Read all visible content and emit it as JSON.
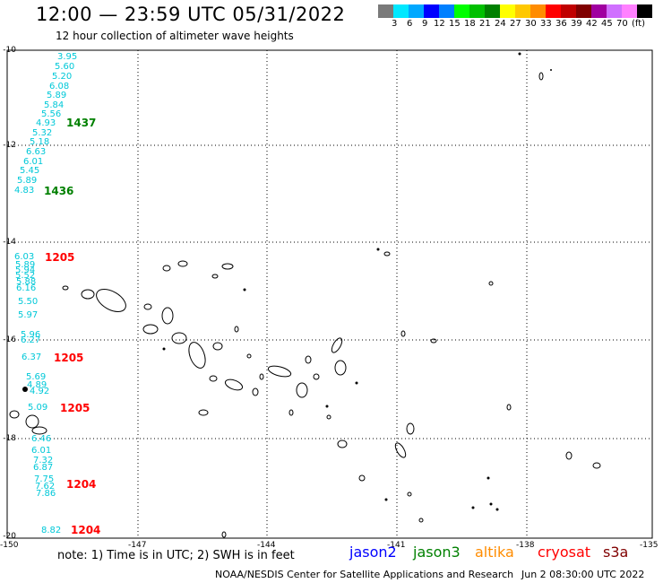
{
  "header": {
    "title": "12:00 — 23:59 UTC 05/31/2022",
    "subtitle": "12 hour collection of altimeter wave heights"
  },
  "legend": {
    "swatches": [
      {
        "color": "#7a7a7a",
        "label": ""
      },
      {
        "color": "#00e8ff",
        "label": "3"
      },
      {
        "color": "#00a8ff",
        "label": "6"
      },
      {
        "color": "#0000ff",
        "label": "9"
      },
      {
        "color": "#0080ff",
        "label": "12"
      },
      {
        "color": "#00ff00",
        "label": "15"
      },
      {
        "color": "#00c000",
        "label": "18"
      },
      {
        "color": "#008000",
        "label": "21"
      },
      {
        "color": "#ffff00",
        "label": "24"
      },
      {
        "color": "#ffc800",
        "label": "27"
      },
      {
        "color": "#ff8c00",
        "label": "30"
      },
      {
        "color": "#ff0000",
        "label": "33"
      },
      {
        "color": "#c00000",
        "label": "36"
      },
      {
        "color": "#800000",
        "label": "39"
      },
      {
        "color": "#a000a0",
        "label": "42"
      },
      {
        "color": "#d070ff",
        "label": "45"
      },
      {
        "color": "#ff80ff",
        "label": "70"
      },
      {
        "color": "#000000",
        "label": "(ft)"
      }
    ]
  },
  "axes": {
    "lat_labels": [
      "-10",
      "-12",
      "-14",
      "-16",
      "-18",
      "-20"
    ],
    "lon_labels": [
      "-150",
      "-147",
      "-144",
      "-141",
      "-138",
      "-135"
    ]
  },
  "tracks": {
    "values": [
      "3.95",
      "5.60",
      "5.20",
      "6.08",
      "5.89",
      "5.84",
      "5.56",
      "4.93",
      "5.32",
      "5.18",
      "6.63",
      "6.01",
      "5.45",
      "5.89",
      "4.83",
      "6.03",
      "5.89",
      "5.94",
      "5.52",
      "5.88",
      "6.16",
      "5.50",
      "5.97",
      "5.96",
      "6.27",
      "6.37",
      "5.69",
      "4.89",
      "4.92",
      "5.09",
      "6.46",
      "6.01",
      "7.32",
      "6.87",
      "7.75",
      "7.62",
      "7.86",
      "8.82"
    ],
    "times": [
      "1437",
      "1436",
      "1205",
      "1205",
      "1205",
      "1204",
      "1204"
    ]
  },
  "bottom": {
    "note": "note: 1) Time is in UTC; 2) SWH is in feet",
    "missions": [
      {
        "name": "jason2",
        "color": "#0000ff"
      },
      {
        "name": "jason3",
        "color": "#008000"
      },
      {
        "name": "altika",
        "color": "#ff8c00"
      },
      {
        "name": "cryosat",
        "color": "#ff0000"
      },
      {
        "name": "s3a",
        "color": "#800000"
      }
    ],
    "footer": "NOAA/NESDIS Center for Satellite Applications and Research",
    "timestamp": "Jun  2 08:30:00 UTC 2022"
  }
}
